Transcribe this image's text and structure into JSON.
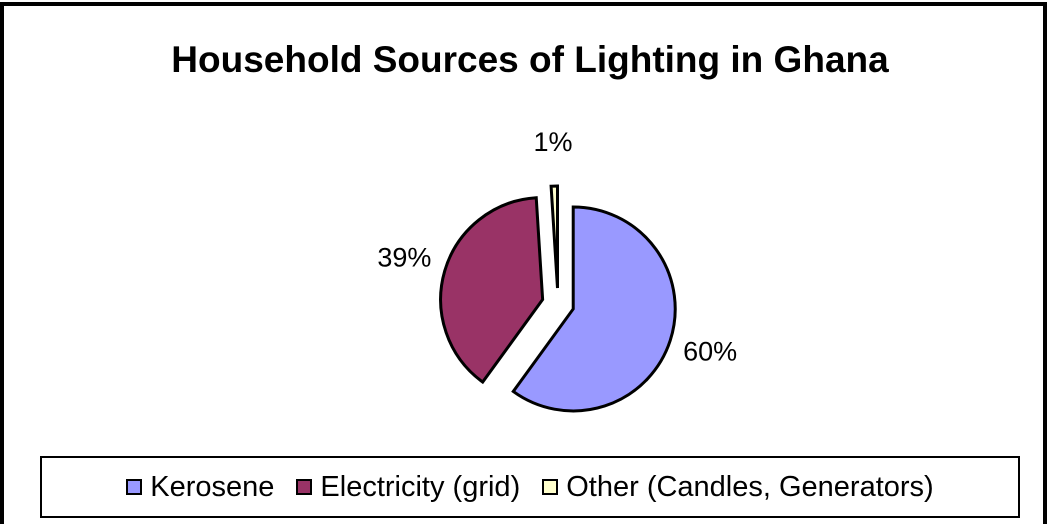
{
  "chart_data": {
    "type": "pie",
    "title": "Household Sources of Lighting in Ghana",
    "categories": [
      "Kerosene",
      "Electricity (grid)",
      "Other (Candles, Generators)"
    ],
    "values": [
      60,
      39,
      1
    ],
    "value_labels": [
      "60%",
      "39%",
      "1%"
    ],
    "colors": [
      "#9999ff",
      "#993366",
      "#ffffcc"
    ],
    "legend": "bottom"
  }
}
